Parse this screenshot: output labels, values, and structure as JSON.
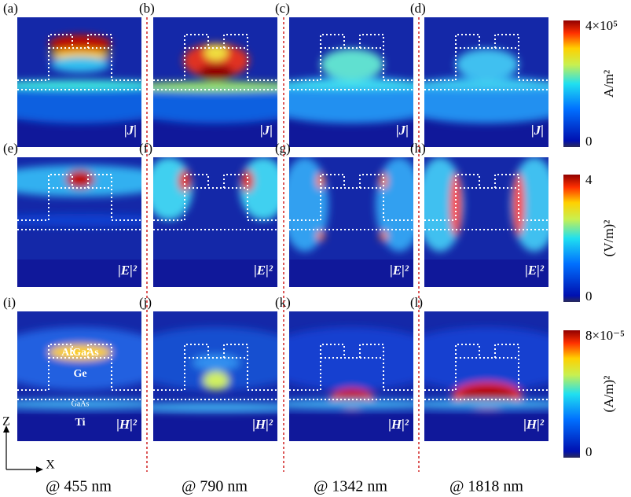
{
  "panels": [
    {
      "label": "(a)",
      "field": "|J|"
    },
    {
      "label": "(b)",
      "field": "|J|"
    },
    {
      "label": "(c)",
      "field": "|J|"
    },
    {
      "label": "(d)",
      "field": "|J|"
    },
    {
      "label": "(e)",
      "field": "|E|²"
    },
    {
      "label": "(f)",
      "field": "|E|²"
    },
    {
      "label": "(g)",
      "field": "|E|²"
    },
    {
      "label": "(h)",
      "field": "|E|²"
    },
    {
      "label": "(i)",
      "field": "|H|²"
    },
    {
      "label": "(j)",
      "field": "|H|²"
    },
    {
      "label": "(k)",
      "field": "|H|²"
    },
    {
      "label": "(l)",
      "field": "|H|²"
    }
  ],
  "columns": [
    "@ 455 nm",
    "@ 790 nm",
    "@ 1342 nm",
    "@ 1818 nm"
  ],
  "colorbars": [
    {
      "max": "4×10⁵",
      "min": "0",
      "unit": "A/m²"
    },
    {
      "max": "4",
      "min": "0",
      "unit": "(V/m)²"
    },
    {
      "max": "8×10⁻⁵",
      "min": "0",
      "unit": "(A/m)²"
    }
  ],
  "materials": [
    "AlGaAs",
    "Ge",
    "GaAs",
    "Ti"
  ],
  "axes": {
    "z": "Z",
    "x": "X"
  }
}
